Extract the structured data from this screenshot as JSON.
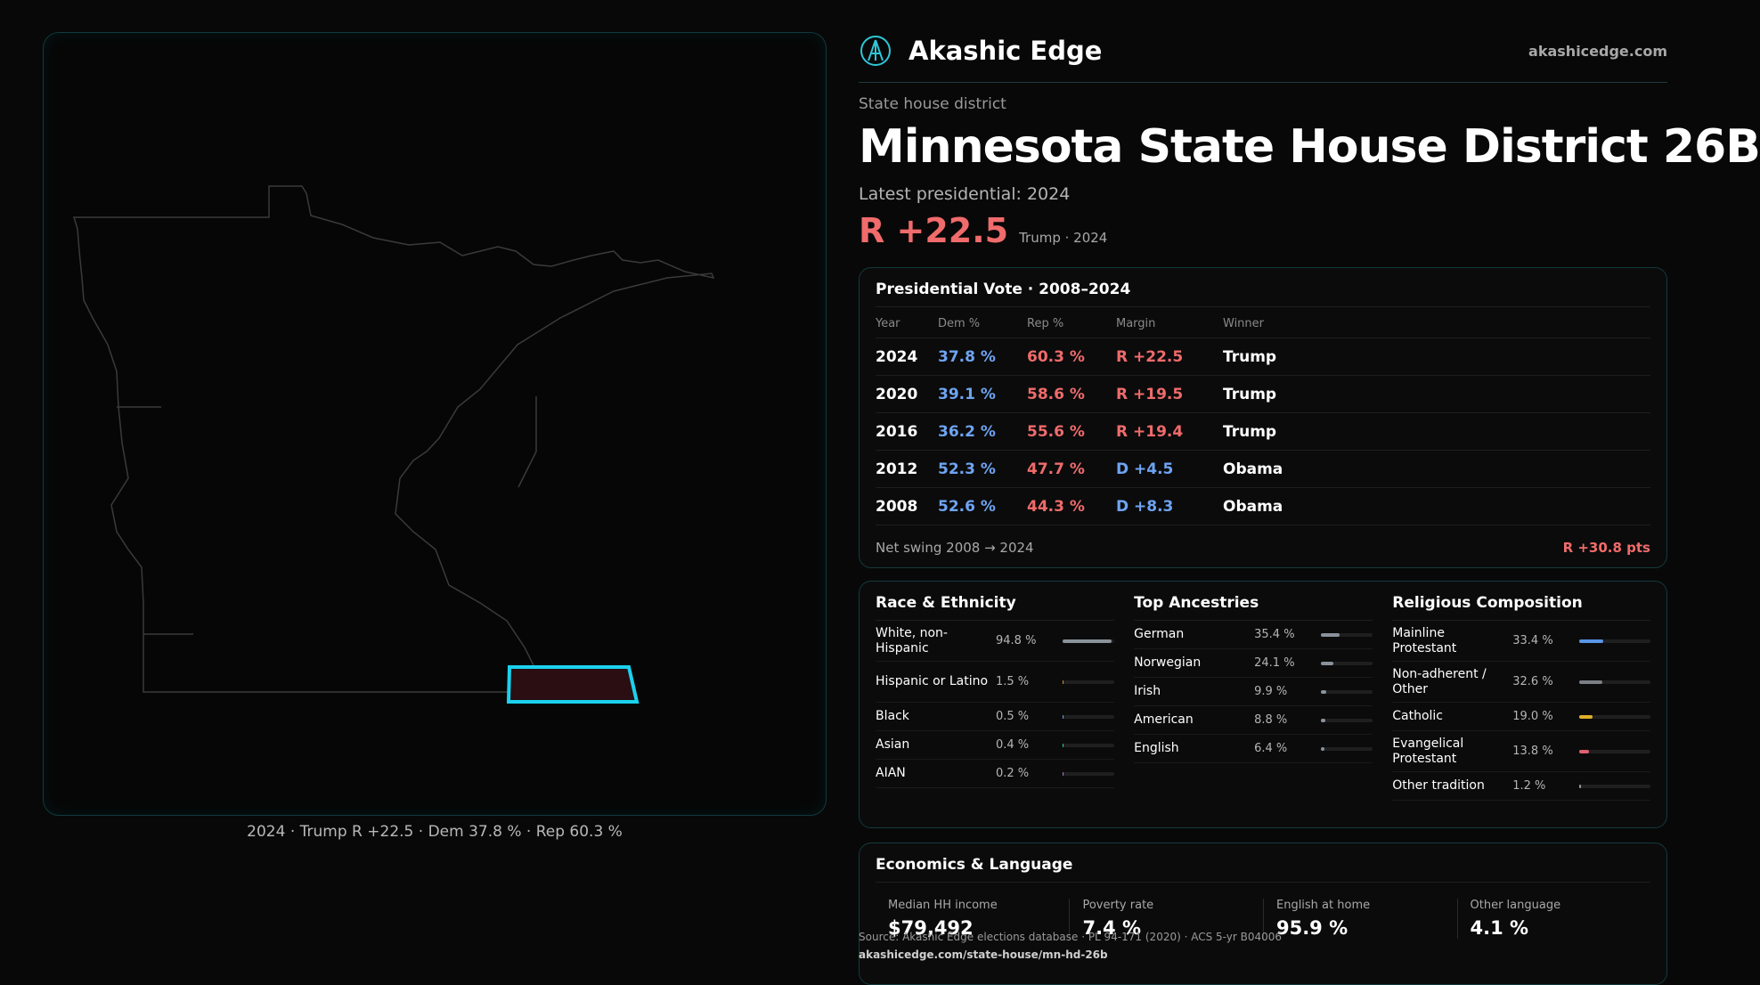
{
  "brand": {
    "name": "Akashic Edge",
    "url": "akashicedge.com"
  },
  "district": {
    "kind": "State house district",
    "title": "Minnesota State House District 26B",
    "latest_label": "Latest presidential: 2024",
    "margin": "R +22.5",
    "margin_sub": "Trump · 2024"
  },
  "map": {
    "caption": "2024 · Trump R +22.5 · Dem 37.8 % · Rep 60.3 %",
    "outline_color": "#3a3a3a",
    "district_color": "#1ad1ee",
    "district_fill": "#2a0e12"
  },
  "presidential": {
    "title": "Presidential Vote · 2008–2024",
    "headers": {
      "year": "Year",
      "dem": "Dem %",
      "rep": "Rep %",
      "margin": "Margin",
      "winner": "Winner"
    },
    "rows": [
      {
        "year": "2024",
        "dem": "37.8 %",
        "rep": "60.3 %",
        "margin": "R +22.5",
        "winner": "Trump"
      },
      {
        "year": "2020",
        "dem": "39.1 %",
        "rep": "58.6 %",
        "margin": "R +19.5",
        "winner": "Trump"
      },
      {
        "year": "2016",
        "dem": "36.2 %",
        "rep": "55.6 %",
        "margin": "R +19.4",
        "winner": "Trump"
      },
      {
        "year": "2012",
        "dem": "52.3 %",
        "rep": "47.7 %",
        "margin": "D +4.5",
        "winner": "Obama"
      },
      {
        "year": "2008",
        "dem": "52.6 %",
        "rep": "44.3 %",
        "margin": "D +8.3",
        "winner": "Obama"
      }
    ],
    "swing_label": "Net swing 2008 → 2024",
    "swing_value": "R +30.8 pts"
  },
  "race": {
    "title": "Race & Ethnicity",
    "items": [
      {
        "label": "White, non-Hispanic",
        "value": "94.8 %",
        "pct": 94.8,
        "color": "#8a939c"
      },
      {
        "label": "Hispanic or Latino",
        "value": "1.5 %",
        "pct": 1.5,
        "color": "#e0903a"
      },
      {
        "label": "Black",
        "value": "0.5 %",
        "pct": 0.5,
        "color": "#6ea4f2"
      },
      {
        "label": "Asian",
        "value": "0.4 %",
        "pct": 0.4,
        "color": "#3ac9a0"
      },
      {
        "label": "AIAN",
        "value": "0.2 %",
        "pct": 0.2,
        "color": "#b07ad8"
      }
    ]
  },
  "ancestry": {
    "title": "Top Ancestries",
    "items": [
      {
        "label": "German",
        "value": "35.4 %",
        "pct": 35.4,
        "color": "#8a939c"
      },
      {
        "label": "Norwegian",
        "value": "24.1 %",
        "pct": 24.1,
        "color": "#8a939c"
      },
      {
        "label": "Irish",
        "value": "9.9 %",
        "pct": 9.9,
        "color": "#8a939c"
      },
      {
        "label": "American",
        "value": "8.8 %",
        "pct": 8.8,
        "color": "#8a939c"
      },
      {
        "label": "English",
        "value": "6.4 %",
        "pct": 6.4,
        "color": "#8a939c"
      }
    ]
  },
  "religion": {
    "title": "Religious Composition",
    "items": [
      {
        "label": "Mainline Protestant",
        "value": "33.4 %",
        "pct": 33.4,
        "color": "#5a95e8"
      },
      {
        "label": "Non-adherent / Other",
        "value": "32.6 %",
        "pct": 32.6,
        "color": "#7b7f86"
      },
      {
        "label": "Catholic",
        "value": "19.0 %",
        "pct": 19.0,
        "color": "#e0b02a"
      },
      {
        "label": "Evangelical Protestant",
        "value": "13.8 %",
        "pct": 13.8,
        "color": "#e06070"
      },
      {
        "label": "Other tradition",
        "value": "1.2 %",
        "pct": 1.2,
        "color": "#9a9a9a"
      }
    ]
  },
  "economics": {
    "title": "Economics & Language",
    "items": [
      {
        "label": "Median HH income",
        "value": "$79,492"
      },
      {
        "label": "Poverty rate",
        "value": "7.4 %"
      },
      {
        "label": "English at home",
        "value": "95.9 %"
      },
      {
        "label": "Other language",
        "value": "4.1 %"
      }
    ]
  },
  "source": {
    "text": "Source: Akashic Edge elections database · PL 94-171 (2020) · ACS 5-yr B04006",
    "url": "akashicedge.com/state-house/mn-hd-26b"
  }
}
